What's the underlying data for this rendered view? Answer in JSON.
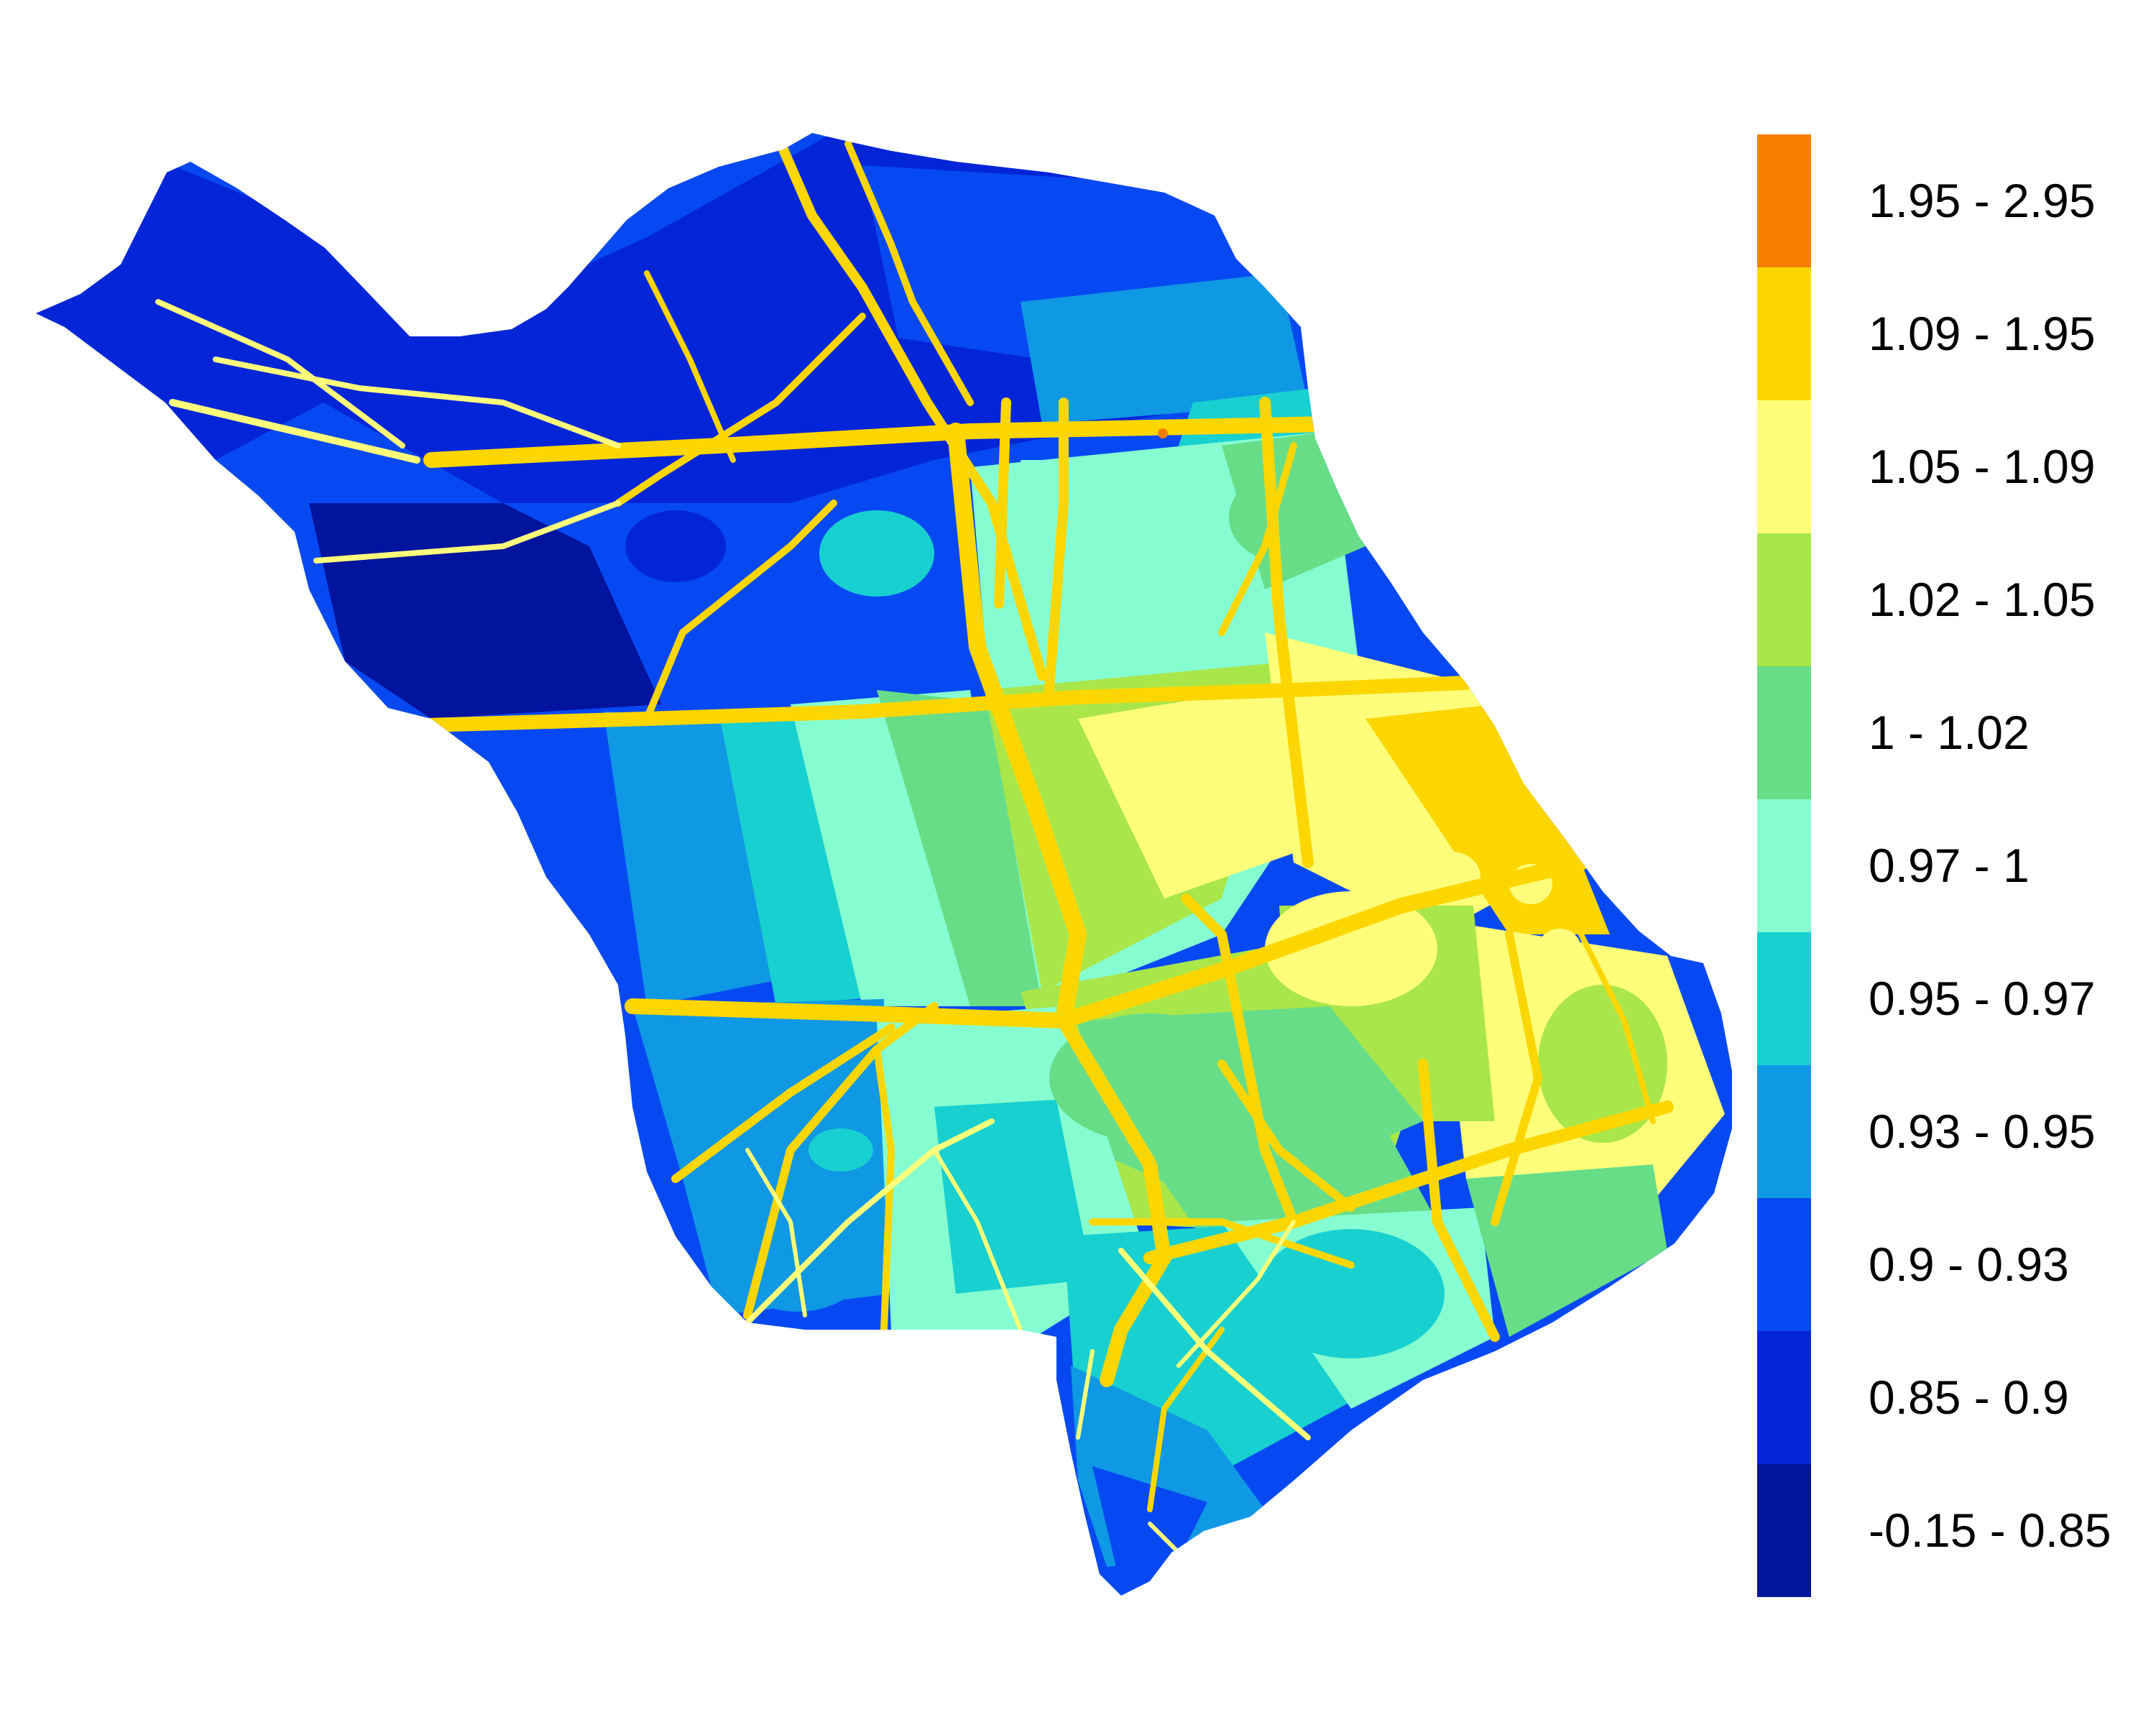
{
  "legend": {
    "classes": [
      {
        "label": "1.95 - 2.95",
        "color": "#F77F00"
      },
      {
        "label": "1.09 - 1.95",
        "color": "#FDD600"
      },
      {
        "label": "1.05 - 1.09",
        "color": "#FEFE7A"
      },
      {
        "label": "1.02 - 1.05",
        "color": "#A9E64A"
      },
      {
        "label": "1 - 1.02",
        "color": "#67DD88"
      },
      {
        "label": "0.97 - 1",
        "color": "#86FDD0"
      },
      {
        "label": "0.95 - 0.97",
        "color": "#18D0D0"
      },
      {
        "label": "0.93 - 0.95",
        "color": "#0F98E4"
      },
      {
        "label": "0.9 - 0.93",
        "color": "#0649F2"
      },
      {
        "label": "0.85 - 0.9",
        "color": "#0225D8"
      },
      {
        "label": "-0.15 - 0.85",
        "color": "#00149D"
      }
    ]
  },
  "map": {
    "road_color": "#FDD600",
    "road_edge_color": "#FEFE7A",
    "hotspot_color": "#F77F00"
  }
}
